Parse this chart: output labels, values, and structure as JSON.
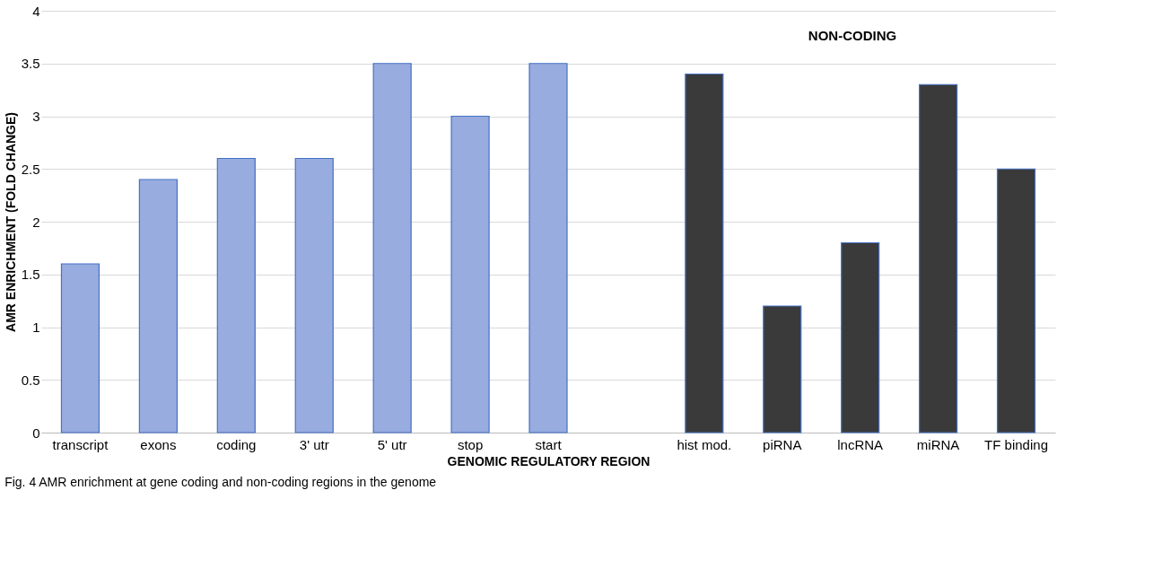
{
  "chart_data": {
    "type": "bar",
    "xlabel": "GENOMIC REGULATORY REGION",
    "ylabel": "AMR ENRICHMENT (FOLD CHANGE)",
    "categories": [
      "transcript",
      "exons",
      "coding",
      "3' utr",
      "5' utr",
      "stop",
      "start",
      null,
      "hist mod.",
      "piRNA",
      "lncRNA",
      "miRNA",
      "TF binding"
    ],
    "values": [
      1.6,
      2.4,
      2.6,
      2.6,
      3.5,
      3.0,
      3.5,
      null,
      3.4,
      1.2,
      1.8,
      3.3,
      2.5
    ],
    "colors": [
      "#98acdf",
      "#98acdf",
      "#98acdf",
      "#98acdf",
      "#98acdf",
      "#98acdf",
      "#98acdf",
      null,
      "#3a3a3a",
      "#3a3a3a",
      "#3a3a3a",
      "#3a3a3a",
      "#3a3a3a"
    ],
    "ylim": [
      0,
      4
    ],
    "yticks": [
      0,
      0.5,
      1,
      1.5,
      2,
      2.5,
      3,
      3.5,
      4
    ],
    "grid": "y",
    "annotations": [
      "NON-CODING",
      "Fig. 4 AMR enrichment at gene coding and non-coding regions in the genome"
    ]
  }
}
